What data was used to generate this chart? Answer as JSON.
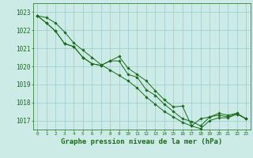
{
  "title": "Graphe pression niveau de la mer (hPa)",
  "xlabel_hours": [
    0,
    1,
    2,
    3,
    4,
    5,
    6,
    7,
    8,
    9,
    10,
    11,
    12,
    13,
    14,
    15,
    16,
    17,
    18,
    19,
    20,
    21,
    22,
    23
  ],
  "series": [
    [
      1022.8,
      1022.7,
      1022.4,
      1021.9,
      1021.3,
      1020.9,
      1020.5,
      1020.1,
      1019.8,
      1019.5,
      1019.2,
      1018.8,
      1018.3,
      1017.9,
      1017.5,
      1017.2,
      1016.9,
      1016.7,
      1017.1,
      1017.2,
      1017.4,
      1017.3,
      1017.4,
      1017.1
    ],
    [
      1022.8,
      1022.4,
      1021.95,
      1021.25,
      1021.1,
      1020.5,
      1020.15,
      1020.05,
      1020.3,
      1020.3,
      1019.55,
      1019.4,
      1018.7,
      1018.4,
      1017.9,
      1017.5,
      1017.1,
      1016.95,
      1016.7,
      1017.2,
      1017.3,
      1017.2,
      1017.4,
      1017.1
    ],
    [
      1022.8,
      1022.4,
      1021.95,
      1021.25,
      1021.1,
      1020.5,
      1020.15,
      1020.05,
      1020.3,
      1020.55,
      1019.9,
      1019.55,
      1019.2,
      1018.65,
      1018.15,
      1017.75,
      1017.8,
      1016.7,
      1016.55,
      1017.0,
      1017.15,
      1017.15,
      1017.35,
      1017.1
    ]
  ],
  "line_color": "#1a6b1a",
  "marker_color": "#1a6b1a",
  "bg_color": "#cceae6",
  "grid_color": "#99cccc",
  "axis_color": "#1a6b1a",
  "text_color": "#1a6b1a",
  "ylim": [
    1016.5,
    1023.5
  ],
  "yticks": [
    1017,
    1018,
    1019,
    1020,
    1021,
    1022,
    1023
  ],
  "title_color": "#1a6b1a",
  "title_fontsize": 6.5,
  "ytick_fontsize": 5.5,
  "xtick_fontsize": 4.2
}
